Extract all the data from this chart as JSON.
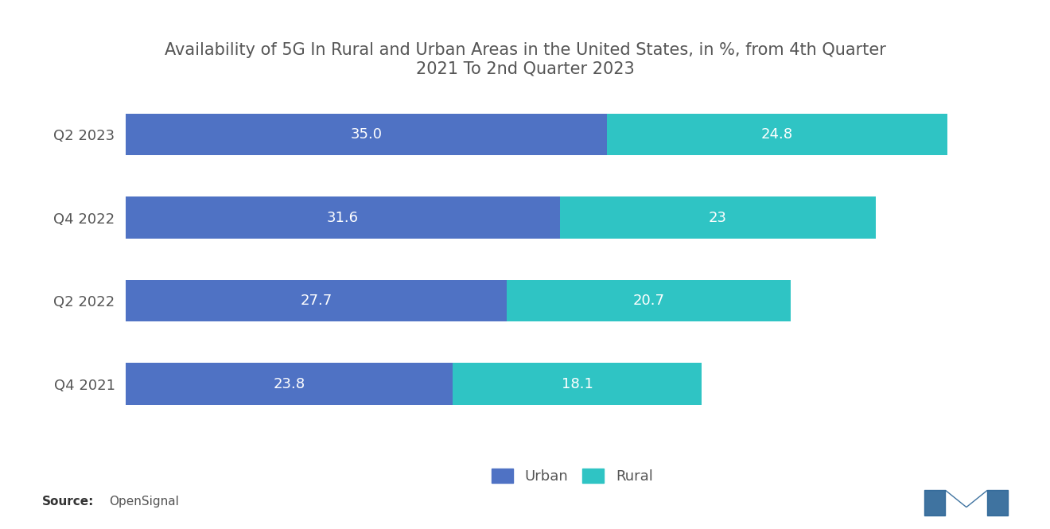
{
  "title": "Availability of 5G In Rural and Urban Areas in the United States, in %, from 4th Quarter\n2021 To 2nd Quarter 2023",
  "categories": [
    "Q4 2021",
    "Q2 2022",
    "Q4 2022",
    "Q2 2023"
  ],
  "urban_values": [
    23.8,
    27.7,
    31.6,
    35.0
  ],
  "rural_values": [
    18.1,
    20.7,
    23.0,
    24.8
  ],
  "urban_color": "#4f72c4",
  "rural_color": "#2fc4c4",
  "background_color": "#ffffff",
  "title_fontsize": 15,
  "label_fontsize": 13,
  "tick_fontsize": 13,
  "legend_fontsize": 13,
  "source_text": "Source:  OpenSignal",
  "bar_height": 0.5,
  "xlim": [
    0,
    65
  ]
}
